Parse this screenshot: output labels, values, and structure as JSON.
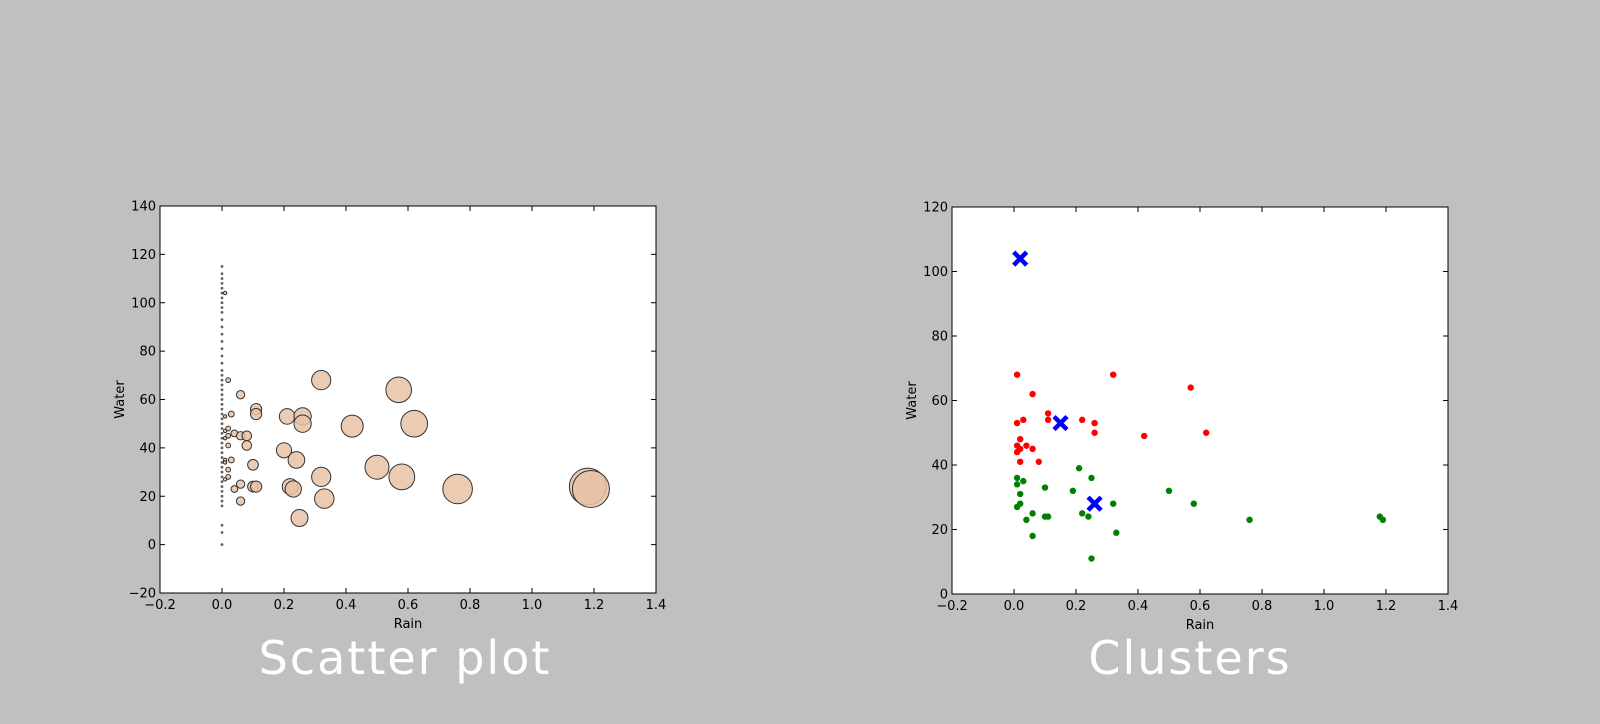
{
  "captions": {
    "left": "Scatter plot",
    "right": "Clusters"
  },
  "colors": {
    "background": "#c0c0c0",
    "bubble_fill": "#e9c2a6",
    "cluster_red": "#ff0000",
    "cluster_green": "#008000",
    "centroid": "#0000ff"
  },
  "chart_data": [
    {
      "type": "scatter",
      "title": "",
      "xlabel": "Rain",
      "ylabel": "Water",
      "xlim": [
        -0.2,
        1.4
      ],
      "ylim": [
        -20,
        140
      ],
      "xticks": [
        -0.2,
        0.0,
        0.2,
        0.4,
        0.6,
        0.8,
        1.0,
        1.2,
        1.4
      ],
      "yticks": [
        -20,
        0,
        20,
        40,
        60,
        80,
        100,
        120,
        140
      ],
      "xtick_labels": [
        "−0.2",
        "0.0",
        "0.2",
        "0.4",
        "0.6",
        "0.8",
        "1.0",
        "1.2",
        "1.4"
      ],
      "ytick_labels": [
        "−20",
        "0",
        "20",
        "40",
        "60",
        "80",
        "100",
        "120",
        "140"
      ],
      "grid": false,
      "point_size_encodes": "Rain",
      "points": [
        {
          "x": 0.0,
          "y": 115
        },
        {
          "x": 0.0,
          "y": 112
        },
        {
          "x": 0.0,
          "y": 110
        },
        {
          "x": 0.0,
          "y": 108
        },
        {
          "x": 0.0,
          "y": 106
        },
        {
          "x": 0.0,
          "y": 104
        },
        {
          "x": 0.0,
          "y": 102
        },
        {
          "x": 0.0,
          "y": 100
        },
        {
          "x": 0.0,
          "y": 98
        },
        {
          "x": 0.0,
          "y": 96
        },
        {
          "x": 0.0,
          "y": 93
        },
        {
          "x": 0.0,
          "y": 90
        },
        {
          "x": 0.0,
          "y": 87
        },
        {
          "x": 0.0,
          "y": 84
        },
        {
          "x": 0.0,
          "y": 81
        },
        {
          "x": 0.0,
          "y": 78
        },
        {
          "x": 0.0,
          "y": 75
        },
        {
          "x": 0.0,
          "y": 72
        },
        {
          "x": 0.0,
          "y": 70
        },
        {
          "x": 0.0,
          "y": 68
        },
        {
          "x": 0.0,
          "y": 66
        },
        {
          "x": 0.0,
          "y": 64
        },
        {
          "x": 0.0,
          "y": 62
        },
        {
          "x": 0.0,
          "y": 60
        },
        {
          "x": 0.0,
          "y": 58
        },
        {
          "x": 0.0,
          "y": 56
        },
        {
          "x": 0.0,
          "y": 54
        },
        {
          "x": 0.0,
          "y": 52
        },
        {
          "x": 0.0,
          "y": 50
        },
        {
          "x": 0.0,
          "y": 48
        },
        {
          "x": 0.0,
          "y": 46
        },
        {
          "x": 0.0,
          "y": 44
        },
        {
          "x": 0.0,
          "y": 42
        },
        {
          "x": 0.0,
          "y": 40
        },
        {
          "x": 0.0,
          "y": 38
        },
        {
          "x": 0.0,
          "y": 36
        },
        {
          "x": 0.0,
          "y": 34
        },
        {
          "x": 0.0,
          "y": 32
        },
        {
          "x": 0.0,
          "y": 30
        },
        {
          "x": 0.0,
          "y": 28
        },
        {
          "x": 0.0,
          "y": 26
        },
        {
          "x": 0.0,
          "y": 24
        },
        {
          "x": 0.0,
          "y": 22
        },
        {
          "x": 0.0,
          "y": 20
        },
        {
          "x": 0.0,
          "y": 18
        },
        {
          "x": 0.0,
          "y": 16
        },
        {
          "x": 0.0,
          "y": 8
        },
        {
          "x": 0.0,
          "y": 5
        },
        {
          "x": 0.0,
          "y": 0
        },
        {
          "x": 0.01,
          "y": 104
        },
        {
          "x": 0.01,
          "y": 53
        },
        {
          "x": 0.01,
          "y": 47
        },
        {
          "x": 0.01,
          "y": 44
        },
        {
          "x": 0.01,
          "y": 35
        },
        {
          "x": 0.01,
          "y": 34
        },
        {
          "x": 0.01,
          "y": 27
        },
        {
          "x": 0.02,
          "y": 68
        },
        {
          "x": 0.02,
          "y": 48
        },
        {
          "x": 0.02,
          "y": 45
        },
        {
          "x": 0.02,
          "y": 41
        },
        {
          "x": 0.02,
          "y": 31
        },
        {
          "x": 0.02,
          "y": 28
        },
        {
          "x": 0.03,
          "y": 54
        },
        {
          "x": 0.03,
          "y": 35
        },
        {
          "x": 0.04,
          "y": 46
        },
        {
          "x": 0.04,
          "y": 23
        },
        {
          "x": 0.06,
          "y": 62
        },
        {
          "x": 0.06,
          "y": 45
        },
        {
          "x": 0.06,
          "y": 25
        },
        {
          "x": 0.06,
          "y": 18
        },
        {
          "x": 0.08,
          "y": 41
        },
        {
          "x": 0.08,
          "y": 45
        },
        {
          "x": 0.1,
          "y": 33
        },
        {
          "x": 0.1,
          "y": 24
        },
        {
          "x": 0.11,
          "y": 56
        },
        {
          "x": 0.11,
          "y": 54
        },
        {
          "x": 0.11,
          "y": 24
        },
        {
          "x": 0.2,
          "y": 39
        },
        {
          "x": 0.21,
          "y": 53
        },
        {
          "x": 0.22,
          "y": 24
        },
        {
          "x": 0.23,
          "y": 23
        },
        {
          "x": 0.24,
          "y": 35
        },
        {
          "x": 0.25,
          "y": 11
        },
        {
          "x": 0.26,
          "y": 53
        },
        {
          "x": 0.26,
          "y": 50
        },
        {
          "x": 0.32,
          "y": 68
        },
        {
          "x": 0.32,
          "y": 28
        },
        {
          "x": 0.33,
          "y": 19
        },
        {
          "x": 0.42,
          "y": 49
        },
        {
          "x": 0.5,
          "y": 32
        },
        {
          "x": 0.57,
          "y": 64
        },
        {
          "x": 0.58,
          "y": 28
        },
        {
          "x": 0.62,
          "y": 50
        },
        {
          "x": 0.76,
          "y": 23
        },
        {
          "x": 1.18,
          "y": 24
        },
        {
          "x": 1.19,
          "y": 23
        }
      ]
    },
    {
      "type": "scatter",
      "title": "",
      "xlabel": "Rain",
      "ylabel": "Water",
      "xlim": [
        -0.2,
        1.4
      ],
      "ylim": [
        0,
        120
      ],
      "xticks": [
        -0.2,
        0.0,
        0.2,
        0.4,
        0.6,
        0.8,
        1.0,
        1.2,
        1.4
      ],
      "yticks": [
        0,
        20,
        40,
        60,
        80,
        100,
        120
      ],
      "xtick_labels": [
        "−0.2",
        "0.0",
        "0.2",
        "0.4",
        "0.6",
        "0.8",
        "1.0",
        "1.2",
        "1.4"
      ],
      "ytick_labels": [
        "0",
        "20",
        "40",
        "60",
        "80",
        "100",
        "120"
      ],
      "grid": false,
      "series": [
        {
          "color": "#ff0000",
          "points": [
            {
              "x": 0.01,
              "y": 68
            },
            {
              "x": 0.06,
              "y": 62
            },
            {
              "x": 0.32,
              "y": 68
            },
            {
              "x": 0.57,
              "y": 64
            },
            {
              "x": 0.11,
              "y": 56
            },
            {
              "x": 0.01,
              "y": 53
            },
            {
              "x": 0.03,
              "y": 54
            },
            {
              "x": 0.11,
              "y": 54
            },
            {
              "x": 0.22,
              "y": 54
            },
            {
              "x": 0.26,
              "y": 53
            },
            {
              "x": 0.26,
              "y": 50
            },
            {
              "x": 0.62,
              "y": 50
            },
            {
              "x": 0.42,
              "y": 49
            },
            {
              "x": 0.02,
              "y": 48
            },
            {
              "x": 0.01,
              "y": 46
            },
            {
              "x": 0.04,
              "y": 46
            },
            {
              "x": 0.06,
              "y": 45
            },
            {
              "x": 0.02,
              "y": 45
            },
            {
              "x": 0.01,
              "y": 44
            },
            {
              "x": 0.02,
              "y": 41
            },
            {
              "x": 0.08,
              "y": 41
            }
          ]
        },
        {
          "color": "#008000",
          "points": [
            {
              "x": 0.01,
              "y": 36
            },
            {
              "x": 0.03,
              "y": 35
            },
            {
              "x": 0.01,
              "y": 34
            },
            {
              "x": 0.21,
              "y": 39
            },
            {
              "x": 0.25,
              "y": 36
            },
            {
              "x": 0.1,
              "y": 33
            },
            {
              "x": 0.02,
              "y": 31
            },
            {
              "x": 0.19,
              "y": 32
            },
            {
              "x": 0.5,
              "y": 32
            },
            {
              "x": 0.58,
              "y": 28
            },
            {
              "x": 0.32,
              "y": 28
            },
            {
              "x": 0.02,
              "y": 28
            },
            {
              "x": 0.01,
              "y": 27
            },
            {
              "x": 0.1,
              "y": 24
            },
            {
              "x": 0.11,
              "y": 24
            },
            {
              "x": 0.22,
              "y": 25
            },
            {
              "x": 0.24,
              "y": 24
            },
            {
              "x": 0.06,
              "y": 25
            },
            {
              "x": 0.04,
              "y": 23
            },
            {
              "x": 0.76,
              "y": 23
            },
            {
              "x": 1.18,
              "y": 24
            },
            {
              "x": 1.19,
              "y": 23
            },
            {
              "x": 0.33,
              "y": 19
            },
            {
              "x": 0.06,
              "y": 18
            },
            {
              "x": 0.25,
              "y": 11
            }
          ]
        }
      ],
      "centroids": {
        "color": "#0000ff",
        "marker": "x",
        "points": [
          {
            "x": 0.02,
            "y": 104
          },
          {
            "x": 0.15,
            "y": 53
          },
          {
            "x": 0.26,
            "y": 28
          }
        ]
      }
    }
  ]
}
